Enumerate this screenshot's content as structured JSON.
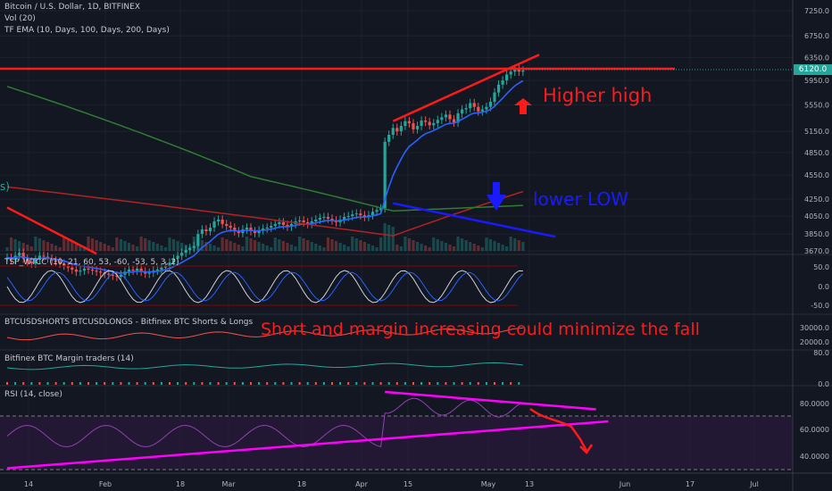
{
  "header": {
    "title": "Bitcoin / U.S. Dollar, 1D, BITFINEX",
    "vol": "Vol (20)",
    "ema": "TF EMA (10, Days, 100, Days, 200, Days)"
  },
  "panes": {
    "wtcc": "TSP_WTCC (10, 21, 60, 53, -60, -53, 5, 3, 2)",
    "shorts": "BTCUSDSHORTS BTCUSDLONGS - Bitfinex BTC Shorts & Longs",
    "margin": "Bitfinex BTC Margin traders (14)",
    "rsi": "RSI (14, close)"
  },
  "annotations": {
    "higher_high": "Higher high",
    "lower_low": "lower LOW",
    "short_margin": "Short and margin increasing could minimize the fall",
    "left_fragment": "s)"
  },
  "price_badge": "6120.0",
  "colors": {
    "background": "#131722",
    "up": "#26a69a",
    "down": "#ef5350",
    "ema10": "#2962ff",
    "ema100": "#b22222",
    "ema200": "#2e7d32",
    "annotation_red": "#ff1a1a",
    "annotation_blue": "#1a1aff",
    "trend_magenta": "#ff00ff",
    "rsi_line": "#8e44ad"
  },
  "chart_data": {
    "type": "candlestick",
    "price_axis": {
      "ticks": [
        "7250.0",
        "6750.0",
        "6350.0",
        "5950.0",
        "5550.0",
        "5150.0",
        "4850.0",
        "4550.0",
        "4250.0",
        "4050.0",
        "3850.0",
        "3670.0"
      ],
      "scale": "log"
    },
    "wtcc_axis": {
      "ticks": [
        "50.0",
        "0.0",
        "-50.0"
      ]
    },
    "shorts_axis": {
      "ticks": [
        "30000.0",
        "20000.0"
      ]
    },
    "margin_axis": {
      "ticks": [
        "80.0",
        "0.0"
      ]
    },
    "rsi_axis": {
      "ticks": [
        "80.0000",
        "60.0000",
        "40.0000"
      ],
      "range": [
        30,
        90
      ]
    },
    "x_axis": {
      "labels": [
        "14",
        "Feb",
        "18",
        "Mar",
        "18",
        "Apr",
        "15",
        "May",
        "13",
        "Jun",
        "17",
        "Jul"
      ]
    },
    "resistance_level": 6150,
    "last_price": 6120,
    "close_series": [
      3600,
      3580,
      3620,
      3650,
      3590,
      3560,
      3540,
      3580,
      3620,
      3610,
      3590,
      3570,
      3560,
      3540,
      3520,
      3500,
      3480,
      3460,
      3470,
      3490,
      3480,
      3470,
      3460,
      3450,
      3440,
      3430,
      3420,
      3410,
      3430,
      3460,
      3480,
      3470,
      3490,
      3460,
      3440,
      3450,
      3470,
      3480,
      3500,
      3520,
      3550,
      3590,
      3620,
      3650,
      3680,
      3700,
      3720,
      3850,
      3900,
      3880,
      3920,
      3990,
      4010,
      3960,
      3940,
      3920,
      3880,
      3860,
      3900,
      3920,
      3880,
      3860,
      3890,
      3910,
      3920,
      3940,
      3960,
      3980,
      3950,
      3930,
      3960,
      3990,
      4000,
      3980,
      3960,
      3990,
      4010,
      4030,
      4040,
      4020,
      4000,
      3980,
      4010,
      4040,
      4050,
      4070,
      4080,
      4060,
      4040,
      4060,
      4100,
      4120,
      4140,
      5000,
      5100,
      5200,
      5150,
      5230,
      5300,
      5270,
      5180,
      5230,
      5310,
      5290,
      5240,
      5270,
      5320,
      5360,
      5400,
      5330,
      5280,
      5420,
      5480,
      5500,
      5580,
      5520,
      5450,
      5480,
      5520,
      5600,
      5750,
      5880,
      5950,
      6050,
      6100,
      6150,
      6100,
      6120
    ],
    "trendlines": [
      {
        "name": "higher-high",
        "color": "red",
        "from": [
          95,
          5300
        ],
        "to": [
          131,
          6400
        ]
      },
      {
        "name": "lower-low",
        "color": "blue",
        "from": [
          95,
          4200
        ],
        "to": [
          135,
          3820
        ]
      },
      {
        "name": "early-downtrend",
        "color": "red",
        "from": [
          0,
          4150
        ],
        "to": [
          22,
          3640
        ]
      },
      {
        "name": "rsi-upper",
        "color": "magenta",
        "from": [
          93,
          88
        ],
        "to": [
          145,
          75
        ]
      },
      {
        "name": "rsi-lower",
        "color": "magenta",
        "from": [
          0,
          31
        ],
        "to": [
          148,
          66
        ]
      }
    ]
  }
}
